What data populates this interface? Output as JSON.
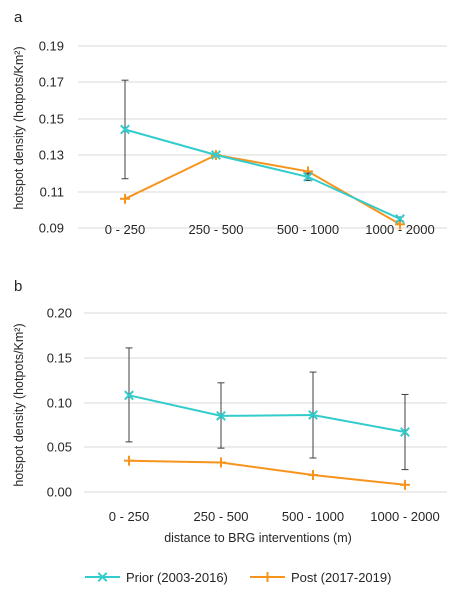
{
  "chart_data": [
    {
      "type": "line",
      "panel": "a",
      "ylabel": "hotspot density (hotpots/Km²)",
      "xlabel": "",
      "categories": [
        "0 - 250",
        "250 - 500",
        "500 - 1000",
        "1000 - 2000"
      ],
      "yticks": [
        "0.19",
        "0.17",
        "0.15",
        "0.13",
        "0.11",
        "0.09"
      ],
      "ylim": [
        0.09,
        0.2
      ],
      "series": [
        {
          "name": "Prior (2003-2016)",
          "color": "#33CCCC",
          "marker": "x",
          "values": [
            0.144,
            0.13,
            0.118,
            0.095
          ],
          "err_low": [
            0.117,
            0.13,
            0.116,
            0.094
          ],
          "err_high": [
            0.171,
            0.13,
            0.12,
            0.096
          ]
        },
        {
          "name": "Post (2017-2019)",
          "color": "#F7941D",
          "marker": "+",
          "values": [
            0.106,
            0.13,
            0.121,
            0.092
          ]
        }
      ],
      "grid": true
    },
    {
      "type": "line",
      "panel": "b",
      "ylabel": "hotspot density (hotpots/Km²)",
      "xlabel": "distance to BRG interventions (m)",
      "categories": [
        "0 - 250",
        "250 - 500",
        "500 - 1000",
        "1000 - 2000"
      ],
      "yticks": [
        "0.20",
        "0.15",
        "0.10",
        "0.05",
        "0.00"
      ],
      "ylim": [
        0,
        0.2
      ],
      "series": [
        {
          "name": "Prior (2003-2016)",
          "color": "#33CCCC",
          "marker": "x",
          "values": [
            0.108,
            0.085,
            0.086,
            0.067
          ],
          "err_low": [
            0.056,
            0.049,
            0.038,
            0.025
          ],
          "err_high": [
            0.161,
            0.122,
            0.134,
            0.109
          ]
        },
        {
          "name": "Post (2017-2019)",
          "color": "#F7941D",
          "marker": "+",
          "values": [
            0.035,
            0.033,
            0.019,
            0.008
          ]
        }
      ],
      "grid": true
    }
  ],
  "legend": {
    "placement": "bottom",
    "items": [
      {
        "label": "Prior (2003-2016)",
        "color": "#33CCCC",
        "marker": "x"
      },
      {
        "label": "Post (2017-2019)",
        "color": "#F7941D",
        "marker": "+"
      }
    ]
  }
}
